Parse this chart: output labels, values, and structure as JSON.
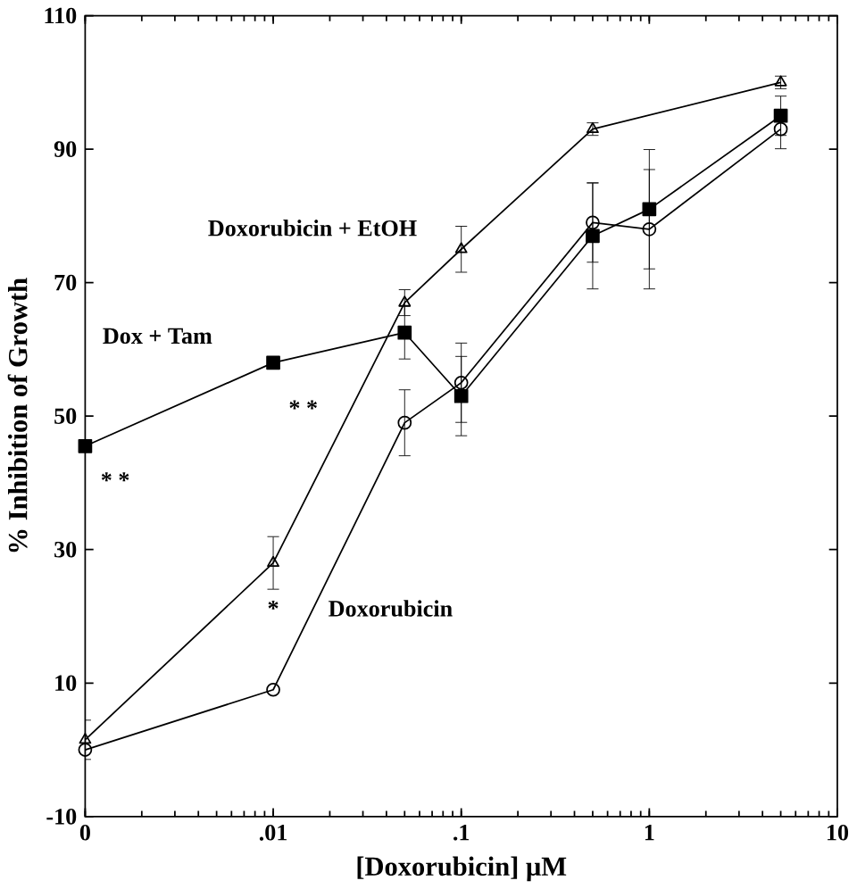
{
  "chart_data": {
    "type": "line",
    "xlabel": "[Doxorubicin] μM",
    "ylabel": "% Inhibition of Growth",
    "log": "x",
    "xlim": [
      0.001,
      10
    ],
    "ylim": [
      -10,
      110
    ],
    "xticks": [
      {
        "value": 0.001,
        "label": "0"
      },
      {
        "value": 0.01,
        "label": ".01"
      },
      {
        "value": 0.1,
        "label": ".1"
      },
      {
        "value": 1,
        "label": "1"
      },
      {
        "value": 10,
        "label": "10"
      }
    ],
    "yticks": [
      -10,
      10,
      30,
      50,
      70,
      90,
      110
    ],
    "grid": false,
    "legend": false,
    "line_style": "solid",
    "series": [
      {
        "name": "Doxorubicin + EtOH",
        "color": "#000000",
        "marker": "triangle",
        "x": [
          0.001,
          0.01,
          0.05,
          0.1,
          0.5,
          5
        ],
        "values": [
          1.5,
          28,
          67,
          75,
          93,
          100
        ],
        "errors": [
          3,
          4,
          2,
          3.5,
          1,
          1
        ]
      },
      {
        "name": "Dox + Tam",
        "color": "#000000",
        "marker": "square",
        "x": [
          0.001,
          0.01,
          0.05,
          0.1,
          0.5,
          1,
          5
        ],
        "values": [
          45.5,
          58,
          62.5,
          53,
          77,
          81,
          95
        ],
        "errors": [
          null,
          null,
          4,
          6,
          8,
          9,
          3
        ]
      },
      {
        "name": "Doxorubicin",
        "color": "#000000",
        "marker": "circle",
        "x": [
          0.001,
          0.01,
          0.05,
          0.1,
          0.5,
          1,
          5
        ],
        "values": [
          0,
          9,
          49,
          55,
          79,
          78,
          93
        ],
        "errors": [
          null,
          null,
          5,
          6,
          6,
          9,
          3
        ]
      }
    ],
    "annotations": [
      "* *",
      "* *",
      "*"
    ]
  }
}
